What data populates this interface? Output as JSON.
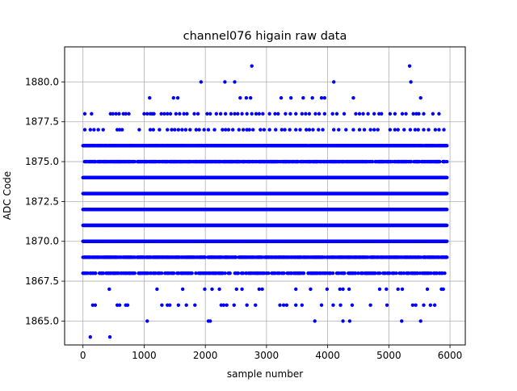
{
  "chart_data": {
    "type": "scatter",
    "title": "channel076 higain raw data",
    "xlabel": "sample number",
    "ylabel": "ADC Code",
    "xlim": [
      -300,
      6250
    ],
    "ylim": [
      1863.5,
      1882.2
    ],
    "xticks": [
      0,
      1000,
      2000,
      3000,
      4000,
      5000,
      6000
    ],
    "xtick_labels": [
      "0",
      "1000",
      "2000",
      "3000",
      "4000",
      "5000",
      "6000"
    ],
    "yticks": [
      1865.0,
      1867.5,
      1870.0,
      1872.5,
      1875.0,
      1877.5,
      1880.0
    ],
    "ytick_labels": [
      "1865.0",
      "1867.5",
      "1870.0",
      "1872.5",
      "1875.0",
      "1877.5",
      "1880.0"
    ],
    "grid": true,
    "marker_color": "#0000ff",
    "n_samples": 5950,
    "dense_levels": [
      1868,
      1869,
      1870,
      1871,
      1872,
      1873,
      1874,
      1875,
      1876
    ],
    "level_fill_fraction": {
      "1868": 0.55,
      "1869": 0.8,
      "1870": 1.0,
      "1871": 1.0,
      "1872": 1.0,
      "1873": 1.0,
      "1874": 1.0,
      "1875": 0.75,
      "1876": 0.95
    },
    "sparse_points": {
      "1877": [
        30,
        120,
        180,
        250,
        330,
        560,
        600,
        640,
        920,
        1100,
        1150,
        1250,
        1380,
        1450,
        1500,
        1560,
        1620,
        1680,
        1750,
        1850,
        1900,
        1980,
        2050,
        2150,
        2280,
        2330,
        2380,
        2450,
        2550,
        2620,
        2680,
        2720,
        2780,
        2900,
        2960,
        3050,
        3150,
        3250,
        3300,
        3380,
        3480,
        3550,
        3650,
        3700,
        3760,
        3850,
        3920,
        4100,
        4180,
        4300,
        4420,
        4520,
        4600,
        4700,
        4760,
        4820,
        5020,
        5100,
        5150,
        5250,
        5350,
        5430,
        5480,
        5570,
        5650,
        5760,
        5820,
        5900
      ],
      "1878": [
        30,
        140,
        450,
        490,
        540,
        590,
        660,
        700,
        750,
        1000,
        1050,
        1100,
        1130,
        1160,
        1280,
        1330,
        1380,
        1430,
        1520,
        1580,
        1650,
        1700,
        1820,
        1880,
        2030,
        2080,
        2180,
        2250,
        2330,
        2420,
        2480,
        2530,
        2600,
        2680,
        2760,
        2830,
        2880,
        2940,
        3050,
        3140,
        3190,
        3310,
        3390,
        3480,
        3580,
        3640,
        3700,
        3800,
        3860,
        3950,
        4080,
        4150,
        4270,
        4460,
        4520,
        4580,
        4660,
        4760,
        4840,
        4880,
        5020,
        5100,
        5220,
        5280,
        5400,
        5450,
        5490,
        5570,
        5720,
        5820
      ],
      "1879": [
        1090,
        1480,
        1550,
        2570,
        2670,
        2740,
        3240,
        3400,
        3600,
        3750,
        3900,
        3950,
        4420,
        5520
      ],
      "1880": [
        1930,
        2320,
        2480,
        4100,
        5360
      ],
      "1881": [
        2760,
        5340
      ],
      "1867": [
        430,
        1210,
        1630,
        1990,
        2110,
        2230,
        2510,
        2600,
        2880,
        2930,
        3480,
        3720,
        3990,
        4200,
        4250,
        4350,
        4850,
        4960,
        5150,
        5220,
        5630,
        5860,
        5890
      ],
      "1866": [
        160,
        200,
        560,
        600,
        700,
        730,
        1290,
        1380,
        1420,
        1560,
        1690,
        1830,
        2260,
        2300,
        2350,
        2470,
        2680,
        2820,
        3220,
        3280,
        3330,
        3480,
        3580,
        3900,
        4090,
        4210,
        4400,
        4700,
        4970,
        5390,
        5440,
        5570,
        5680,
        5750
      ],
      "1865": [
        1050,
        2050,
        2080,
        3790,
        4250,
        4360,
        5210,
        5520
      ],
      "1864": [
        120,
        440
      ]
    }
  }
}
